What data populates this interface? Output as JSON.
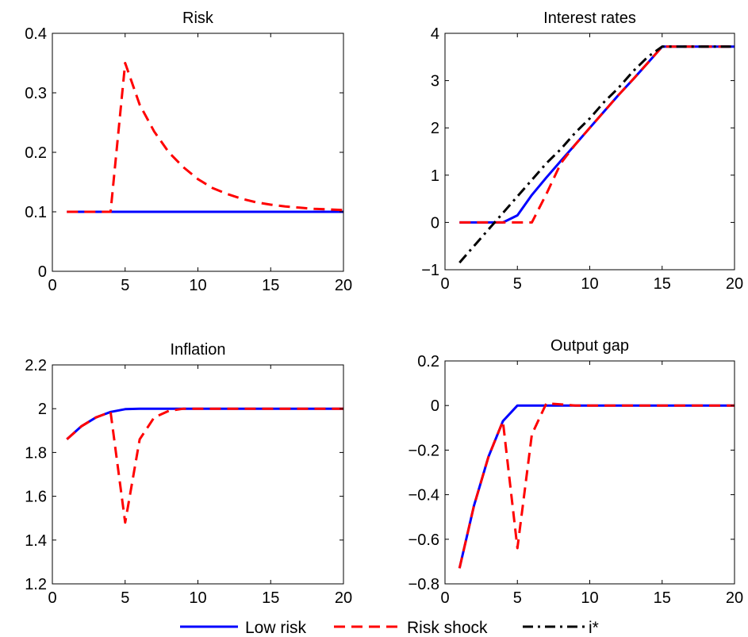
{
  "chart_data": [
    {
      "type": "line",
      "title": "Risk",
      "xlabel": "",
      "ylabel": "",
      "xlim": [
        0,
        20
      ],
      "ylim": [
        0,
        0.4
      ],
      "xticks": [
        0,
        5,
        10,
        15,
        20
      ],
      "yticks": [
        0,
        0.1,
        0.2,
        0.3,
        0.4
      ],
      "xticklabels": [
        "0",
        "5",
        "10",
        "15",
        "20"
      ],
      "yticklabels": [
        "0",
        "0.1",
        "0.2",
        "0.3",
        "0.4"
      ],
      "grid": false,
      "x": [
        1,
        2,
        3,
        4,
        5,
        6,
        7,
        8,
        9,
        10,
        11,
        12,
        13,
        14,
        15,
        16,
        17,
        18,
        19,
        20
      ],
      "series": [
        {
          "name": "Low risk",
          "style": "solid",
          "color": "#0000ff",
          "values": [
            0.1,
            0.1,
            0.1,
            0.1,
            0.1,
            0.1,
            0.1,
            0.1,
            0.1,
            0.1,
            0.1,
            0.1,
            0.1,
            0.1,
            0.1,
            0.1,
            0.1,
            0.1,
            0.1,
            0.1
          ]
        },
        {
          "name": "Risk shock",
          "style": "dashed",
          "color": "#ff0000",
          "values": [
            0.1,
            0.1,
            0.1,
            0.1,
            0.35,
            0.28,
            0.235,
            0.2,
            0.175,
            0.155,
            0.14,
            0.13,
            0.122,
            0.116,
            0.112,
            0.109,
            0.107,
            0.105,
            0.104,
            0.103
          ]
        }
      ]
    },
    {
      "type": "line",
      "title": "Interest rates",
      "xlabel": "",
      "ylabel": "",
      "xlim": [
        0,
        20
      ],
      "ylim": [
        -1,
        4
      ],
      "xticks": [
        0,
        5,
        10,
        15,
        20
      ],
      "yticks": [
        -1,
        0,
        1,
        2,
        3,
        4
      ],
      "xticklabels": [
        "0",
        "5",
        "10",
        "15",
        "20"
      ],
      "yticklabels": [
        "−1",
        "0",
        "1",
        "2",
        "3",
        "4"
      ],
      "grid": false,
      "x": [
        1,
        2,
        3,
        4,
        5,
        6,
        7,
        8,
        9,
        10,
        11,
        12,
        13,
        14,
        15,
        16,
        17,
        18,
        19,
        20
      ],
      "series": [
        {
          "name": "Low risk",
          "style": "solid",
          "color": "#0000ff",
          "values": [
            0,
            0,
            0,
            0,
            0.15,
            0.58,
            0.95,
            1.3,
            1.65,
            2.0,
            2.35,
            2.7,
            3.03,
            3.37,
            3.72,
            3.72,
            3.72,
            3.72,
            3.72,
            3.72
          ]
        },
        {
          "name": "Risk shock",
          "style": "dashed",
          "color": "#ff0000",
          "values": [
            0,
            0,
            0,
            0,
            0,
            0,
            0.6,
            1.25,
            1.65,
            2.0,
            2.35,
            2.7,
            3.03,
            3.37,
            3.72,
            3.72,
            3.72,
            3.72,
            3.72,
            3.72
          ]
        },
        {
          "name": "i*",
          "style": "dashdot",
          "color": "#000000",
          "values": [
            -0.85,
            -0.5,
            -0.15,
            0.2,
            0.55,
            0.9,
            1.25,
            1.55,
            1.9,
            2.2,
            2.55,
            2.85,
            3.2,
            3.5,
            3.72,
            3.72,
            3.72,
            3.72,
            3.72,
            3.72
          ]
        }
      ]
    },
    {
      "type": "line",
      "title": "Inflation",
      "xlabel": "",
      "ylabel": "",
      "xlim": [
        0,
        20
      ],
      "ylim": [
        1.2,
        2.2
      ],
      "xticks": [
        0,
        5,
        10,
        15,
        20
      ],
      "yticks": [
        1.2,
        1.4,
        1.6,
        1.8,
        2.0,
        2.2
      ],
      "xticklabels": [
        "0",
        "5",
        "10",
        "15",
        "20"
      ],
      "yticklabels": [
        "1.2",
        "1.4",
        "1.6",
        "1.8",
        "2",
        "2.2"
      ],
      "grid": false,
      "x": [
        1,
        2,
        3,
        4,
        5,
        6,
        7,
        8,
        9,
        10,
        11,
        12,
        13,
        14,
        15,
        16,
        17,
        18,
        19,
        20
      ],
      "series": [
        {
          "name": "Low risk",
          "style": "solid",
          "color": "#0000ff",
          "values": [
            1.86,
            1.92,
            1.96,
            1.985,
            1.998,
            2.0,
            2.0,
            2.0,
            2.0,
            2.0,
            2.0,
            2.0,
            2.0,
            2.0,
            2.0,
            2.0,
            2.0,
            2.0,
            2.0,
            2.0
          ]
        },
        {
          "name": "Risk shock",
          "style": "dashed",
          "color": "#ff0000",
          "values": [
            1.86,
            1.92,
            1.96,
            1.985,
            1.48,
            1.86,
            1.96,
            1.99,
            2.0,
            2.0,
            2.0,
            2.0,
            2.0,
            2.0,
            2.0,
            2.0,
            2.0,
            2.0,
            2.0,
            2.0
          ]
        }
      ]
    },
    {
      "type": "line",
      "title": "Output gap",
      "xlabel": "",
      "ylabel": "",
      "xlim": [
        0,
        20
      ],
      "ylim": [
        -0.8,
        0.2
      ],
      "xticks": [
        0,
        5,
        10,
        15,
        20
      ],
      "yticks": [
        -0.8,
        -0.6,
        -0.4,
        -0.2,
        0,
        0.2
      ],
      "xticklabels": [
        "0",
        "5",
        "10",
        "15",
        "20"
      ],
      "yticklabels": [
        "−0.8",
        "−0.6",
        "−0.4",
        "−0.2",
        "0",
        "0.2"
      ],
      "grid": false,
      "x": [
        1,
        2,
        3,
        4,
        5,
        6,
        7,
        8,
        9,
        10,
        11,
        12,
        13,
        14,
        15,
        16,
        17,
        18,
        19,
        20
      ],
      "series": [
        {
          "name": "Low risk",
          "style": "solid",
          "color": "#0000ff",
          "values": [
            -0.73,
            -0.45,
            -0.23,
            -0.07,
            0,
            0,
            0,
            0,
            0,
            0,
            0,
            0,
            0,
            0,
            0,
            0,
            0,
            0,
            0,
            0
          ]
        },
        {
          "name": "Risk shock",
          "style": "dashed",
          "color": "#ff0000",
          "values": [
            -0.73,
            -0.45,
            -0.23,
            -0.07,
            -0.64,
            -0.13,
            0.01,
            0.005,
            0,
            0,
            0,
            0,
            0,
            0,
            0,
            0,
            0,
            0,
            0,
            0
          ]
        }
      ]
    }
  ],
  "legend": {
    "placement": "bottom-center",
    "entries": [
      {
        "label": "Low risk",
        "style": "solid",
        "color": "#0000ff"
      },
      {
        "label": "Risk shock",
        "style": "dashed",
        "color": "#ff0000"
      },
      {
        "label": "i*",
        "style": "dashdot",
        "color": "#000000"
      }
    ]
  }
}
